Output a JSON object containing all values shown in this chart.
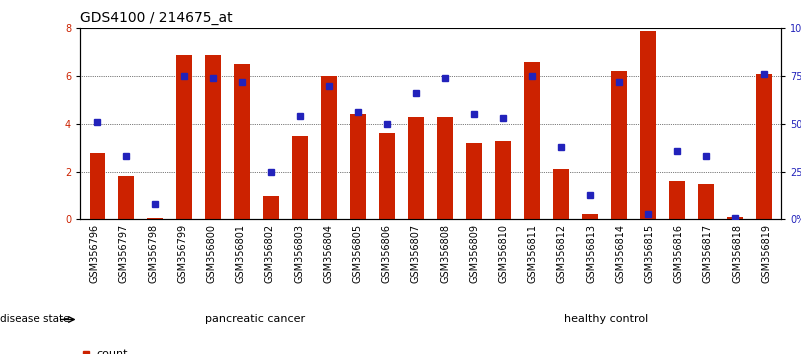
{
  "title": "GDS4100 / 214675_at",
  "samples": [
    "GSM356796",
    "GSM356797",
    "GSM356798",
    "GSM356799",
    "GSM356800",
    "GSM356801",
    "GSM356802",
    "GSM356803",
    "GSM356804",
    "GSM356805",
    "GSM356806",
    "GSM356807",
    "GSM356808",
    "GSM356809",
    "GSM356810",
    "GSM356811",
    "GSM356812",
    "GSM356813",
    "GSM356814",
    "GSM356815",
    "GSM356816",
    "GSM356817",
    "GSM356818",
    "GSM356819"
  ],
  "counts": [
    2.8,
    1.8,
    0.05,
    6.9,
    6.9,
    6.5,
    1.0,
    3.5,
    6.0,
    4.4,
    3.6,
    4.3,
    4.3,
    3.2,
    3.3,
    6.6,
    2.1,
    0.25,
    6.2,
    7.9,
    1.6,
    1.5,
    0.1,
    6.1
  ],
  "percentile_ranks": [
    51,
    33,
    8,
    75,
    74,
    72,
    25,
    54,
    70,
    56,
    50,
    66,
    74,
    55,
    53,
    75,
    38,
    13,
    72,
    3,
    36,
    33,
    1,
    76
  ],
  "pancreatic_cancer_count": 12,
  "healthy_control_count": 12,
  "group_labels": [
    "pancreatic cancer",
    "healthy control"
  ],
  "cancer_color": "#ccffcc",
  "healthy_color": "#44cc44",
  "bar_color": "#cc2200",
  "marker_color": "#2222bb",
  "ylim_left": [
    0,
    8
  ],
  "ylim_right": [
    0,
    100
  ],
  "yticks_left": [
    0,
    2,
    4,
    6,
    8
  ],
  "yticks_right": [
    0,
    25,
    50,
    75,
    100
  ],
  "ytick_labels_right": [
    "0%",
    "25%",
    "50%",
    "75%",
    "100%"
  ],
  "title_fontsize": 10,
  "tick_fontsize": 7,
  "label_fontsize": 8
}
